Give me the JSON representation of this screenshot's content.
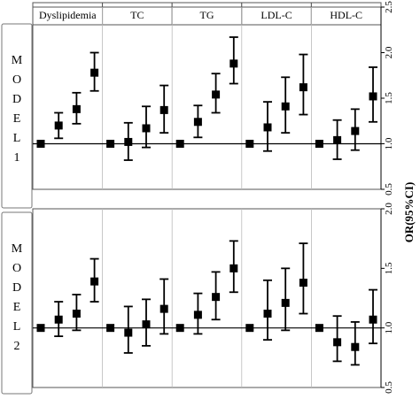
{
  "chart_data": {
    "type": "scatter",
    "subtype": "forest-plot-with-error-bars",
    "groups": [
      "Dyslipidemia",
      "TC",
      "TG",
      "LDL-C",
      "HDL-C"
    ],
    "points_per_group": 4,
    "y_axis_label": "OR(95%CI)",
    "reference_line": 1.0,
    "grid": false,
    "panels": [
      {
        "label": "MODEL 1",
        "ylim": [
          0.5,
          2.5
        ],
        "ticks": [
          "0.5",
          "1.0",
          "1.5",
          "2.0",
          "2.5"
        ],
        "series": [
          {
            "group": "Dyslipidemia",
            "or": [
              1.0,
              1.2,
              1.38,
              1.78
            ],
            "lower": [
              1.0,
              1.06,
              1.22,
              1.58
            ],
            "upper": [
              1.0,
              1.34,
              1.56,
              2.0
            ]
          },
          {
            "group": "TC",
            "or": [
              1.0,
              1.02,
              1.17,
              1.37
            ],
            "lower": [
              1.0,
              0.82,
              0.96,
              1.12
            ],
            "upper": [
              1.0,
              1.23,
              1.41,
              1.64
            ]
          },
          {
            "group": "TG",
            "or": [
              1.0,
              1.24,
              1.54,
              1.88
            ],
            "lower": [
              1.0,
              1.07,
              1.34,
              1.66
            ],
            "upper": [
              1.0,
              1.42,
              1.77,
              2.17
            ]
          },
          {
            "group": "LDL-C",
            "or": [
              1.0,
              1.18,
              1.41,
              1.62
            ],
            "lower": [
              1.0,
              0.92,
              1.12,
              1.32
            ],
            "upper": [
              1.0,
              1.46,
              1.73,
              1.98
            ]
          },
          {
            "group": "HDL-C",
            "or": [
              1.0,
              1.04,
              1.14,
              1.52
            ],
            "lower": [
              1.0,
              0.83,
              0.93,
              1.24
            ],
            "upper": [
              1.0,
              1.26,
              1.38,
              1.84
            ]
          }
        ]
      },
      {
        "label": "MODEL 2",
        "ylim": [
          0.5,
          2.0
        ],
        "ticks": [
          "0.5",
          "1.0",
          "1.5",
          "2.0"
        ],
        "series": [
          {
            "group": "Dyslipidemia",
            "or": [
              1.0,
              1.07,
              1.12,
              1.39
            ],
            "lower": [
              1.0,
              0.93,
              0.98,
              1.22
            ],
            "upper": [
              1.0,
              1.22,
              1.28,
              1.58
            ]
          },
          {
            "group": "TC",
            "or": [
              1.0,
              0.96,
              1.03,
              1.16
            ],
            "lower": [
              1.0,
              0.79,
              0.85,
              0.95
            ],
            "upper": [
              1.0,
              1.18,
              1.24,
              1.41
            ]
          },
          {
            "group": "TG",
            "or": [
              1.0,
              1.11,
              1.26,
              1.5
            ],
            "lower": [
              1.0,
              0.95,
              1.07,
              1.3
            ],
            "upper": [
              1.0,
              1.29,
              1.47,
              1.73
            ]
          },
          {
            "group": "LDL-C",
            "or": [
              1.0,
              1.12,
              1.21,
              1.38
            ],
            "lower": [
              1.0,
              0.9,
              0.98,
              1.12
            ],
            "upper": [
              1.0,
              1.4,
              1.5,
              1.71
            ]
          },
          {
            "group": "HDL-C",
            "or": [
              1.0,
              0.88,
              0.84,
              1.07
            ],
            "lower": [
              1.0,
              0.72,
              0.69,
              0.87
            ],
            "upper": [
              1.0,
              1.1,
              1.05,
              1.32
            ]
          }
        ]
      }
    ]
  }
}
